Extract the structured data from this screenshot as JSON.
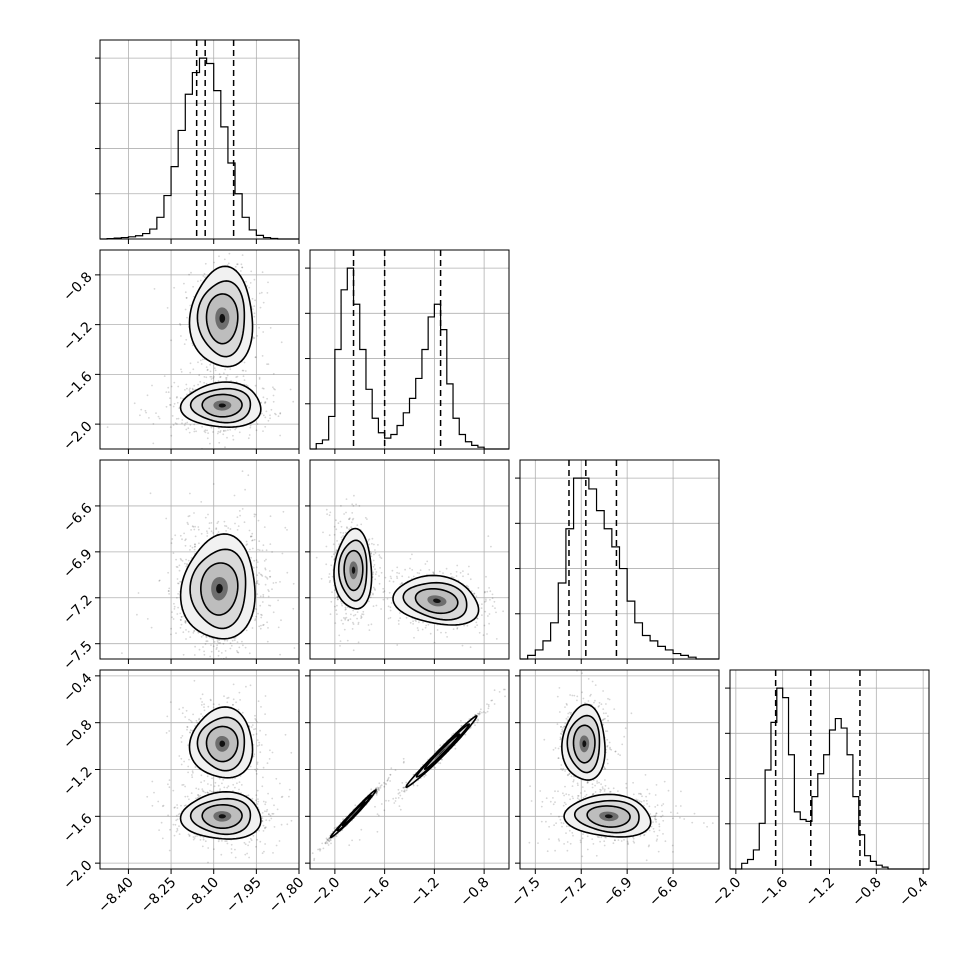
{
  "chart_data": {
    "type": "corner",
    "title": "",
    "grid": true,
    "parameters": [
      {
        "range": [
          -8.5,
          -7.8
        ],
        "ticks": [
          -8.4,
          -8.25,
          -8.1,
          -7.95,
          -7.8
        ],
        "tick_labels": [
          "−8.40",
          "−8.25",
          "−8.10",
          "−7.95",
          "−7.80"
        ]
      },
      {
        "range": [
          -2.2,
          -0.6
        ],
        "ticks": [
          -2.0,
          -1.6,
          -1.2,
          -0.8
        ],
        "tick_labels": [
          "−2.0",
          "−1.6",
          "−1.2",
          "−0.8"
        ]
      },
      {
        "range": [
          -7.6,
          -6.3
        ],
        "ticks": [
          -7.5,
          -7.2,
          -6.9,
          -6.6
        ],
        "tick_labels": [
          "−7.5",
          "−7.2",
          "−6.9",
          "−6.6"
        ]
      },
      {
        "range": [
          -2.05,
          -0.35
        ],
        "ticks": [
          -2.0,
          -1.6,
          -1.2,
          -0.8,
          -0.4
        ],
        "tick_labels": [
          "−2.0",
          "−1.6",
          "−1.2",
          "−0.8",
          "−0.4"
        ]
      }
    ],
    "histograms": [
      {
        "param": 0,
        "edges": [
          -8.5,
          -8.475,
          -8.45,
          -8.425,
          -8.4,
          -8.375,
          -8.35,
          -8.325,
          -8.3,
          -8.275,
          -8.25,
          -8.225,
          -8.2,
          -8.175,
          -8.15,
          -8.125,
          -8.1,
          -8.075,
          -8.05,
          -8.025,
          -8.0,
          -7.975,
          -7.95,
          -7.925,
          -7.9,
          -7.875,
          -7.85,
          -7.825,
          -7.8
        ],
        "counts": [
          0.0,
          0.002,
          0.005,
          0.008,
          0.012,
          0.018,
          0.03,
          0.055,
          0.12,
          0.24,
          0.4,
          0.6,
          0.8,
          0.92,
          1.0,
          0.97,
          0.82,
          0.62,
          0.42,
          0.25,
          0.12,
          0.05,
          0.02,
          0.008,
          0.003,
          0.0,
          0.0,
          0.0
        ],
        "quantiles": [
          -8.16,
          -8.13,
          -8.03
        ]
      },
      {
        "param": 1,
        "edges": [
          -2.2,
          -2.15,
          -2.1,
          -2.05,
          -2.0,
          -1.95,
          -1.9,
          -1.85,
          -1.8,
          -1.75,
          -1.7,
          -1.65,
          -1.6,
          -1.55,
          -1.5,
          -1.45,
          -1.4,
          -1.35,
          -1.3,
          -1.25,
          -1.2,
          -1.15,
          -1.1,
          -1.05,
          -1.0,
          -0.95,
          -0.9,
          -0.85,
          -0.8,
          -0.75,
          -0.7,
          -0.65,
          -0.6
        ],
        "counts": [
          0.0,
          0.03,
          0.05,
          0.18,
          0.55,
          0.88,
          1.0,
          0.8,
          0.55,
          0.33,
          0.17,
          0.09,
          0.06,
          0.08,
          0.13,
          0.2,
          0.28,
          0.39,
          0.55,
          0.73,
          0.8,
          0.66,
          0.36,
          0.17,
          0.08,
          0.04,
          0.02,
          0.01,
          0.0,
          0.0,
          0.0,
          0.0
        ],
        "quantiles": [
          -1.85,
          -1.6,
          -1.15
        ]
      },
      {
        "param": 2,
        "edges": [
          -7.6,
          -7.55,
          -7.5,
          -7.45,
          -7.4,
          -7.35,
          -7.3,
          -7.25,
          -7.2,
          -7.15,
          -7.1,
          -7.05,
          -7.0,
          -6.95,
          -6.9,
          -6.85,
          -6.8,
          -6.75,
          -6.7,
          -6.65,
          -6.6,
          -6.55,
          -6.5,
          -6.45,
          -6.4,
          -6.35,
          -6.3
        ],
        "counts": [
          0.0,
          0.02,
          0.05,
          0.1,
          0.2,
          0.42,
          0.72,
          1.0,
          1.0,
          0.94,
          0.82,
          0.72,
          0.62,
          0.5,
          0.32,
          0.2,
          0.13,
          0.1,
          0.07,
          0.05,
          0.03,
          0.02,
          0.01,
          0.0,
          0.0,
          0.0
        ],
        "quantiles": [
          -7.28,
          -7.17,
          -6.97
        ]
      },
      {
        "param": 3,
        "edges": [
          -2.05,
          -2.0,
          -1.95,
          -1.9,
          -1.85,
          -1.8,
          -1.75,
          -1.7,
          -1.65,
          -1.6,
          -1.55,
          -1.5,
          -1.45,
          -1.4,
          -1.35,
          -1.3,
          -1.25,
          -1.2,
          -1.15,
          -1.1,
          -1.05,
          -1.0,
          -0.95,
          -0.9,
          -0.85,
          -0.8,
          -0.75,
          -0.7,
          -0.65,
          -0.6,
          -0.55,
          -0.5,
          -0.45,
          -0.4,
          -0.35
        ],
        "counts": [
          0.0,
          0.0,
          0.03,
          0.05,
          0.1,
          0.24,
          0.52,
          0.77,
          0.95,
          0.9,
          0.6,
          0.3,
          0.26,
          0.25,
          0.38,
          0.5,
          0.6,
          0.73,
          0.79,
          0.74,
          0.6,
          0.38,
          0.18,
          0.07,
          0.04,
          0.02,
          0.01,
          0.0,
          0.0,
          0.0,
          0.0,
          0.0,
          0.0,
          0.0
        ],
        "quantiles": [
          -1.66,
          -1.36,
          -0.94
        ]
      }
    ],
    "scatter_panels": [
      {
        "x_param": 0,
        "y_param": 1,
        "modes": [
          {
            "mean": [
              -8.07,
              -1.15
            ],
            "std": [
              0.055,
              0.2
            ],
            "corr": 0.0,
            "weight": 0.45
          },
          {
            "mean": [
              -8.07,
              -1.85
            ],
            "std": [
              0.07,
              0.09
            ],
            "corr": 0.0,
            "weight": 0.55
          }
        ]
      },
      {
        "x_param": 0,
        "y_param": 2,
        "modes": [
          {
            "mean": [
              -8.08,
              -7.14
            ],
            "std": [
              0.065,
              0.17
            ],
            "corr": 0.05,
            "weight": 1.0
          }
        ]
      },
      {
        "x_param": 1,
        "y_param": 2,
        "modes": [
          {
            "mean": [
              -1.85,
              -7.02
            ],
            "std": [
              0.075,
              0.13
            ],
            "corr": 0.0,
            "weight": 0.5
          },
          {
            "mean": [
              -1.18,
              -7.22
            ],
            "std": [
              0.17,
              0.08
            ],
            "corr": -0.2,
            "weight": 0.5
          }
        ]
      },
      {
        "x_param": 0,
        "y_param": 3,
        "modes": [
          {
            "mean": [
              -8.07,
              -0.98
            ],
            "std": [
              0.055,
              0.15
            ],
            "corr": 0.0,
            "weight": 0.45
          },
          {
            "mean": [
              -8.07,
              -1.6
            ],
            "std": [
              0.07,
              0.1
            ],
            "corr": 0.0,
            "weight": 0.55
          }
        ]
      },
      {
        "x_param": 1,
        "y_param": 3,
        "modes": [
          {
            "mean": [
              -1.85,
              -1.58
            ],
            "std": [
              0.09,
              0.1
            ],
            "corr": 0.99,
            "weight": 0.5
          },
          {
            "mean": [
              -1.14,
              -1.05
            ],
            "std": [
              0.14,
              0.15
            ],
            "corr": 0.99,
            "weight": 0.5
          }
        ]
      },
      {
        "x_param": 2,
        "y_param": 3,
        "modes": [
          {
            "mean": [
              -7.18,
              -0.98
            ],
            "std": [
              0.07,
              0.16
            ],
            "corr": 0.0,
            "weight": 0.45
          },
          {
            "mean": [
              -7.02,
              -1.6
            ],
            "std": [
              0.14,
              0.09
            ],
            "corr": -0.1,
            "weight": 0.55
          }
        ]
      }
    ]
  }
}
